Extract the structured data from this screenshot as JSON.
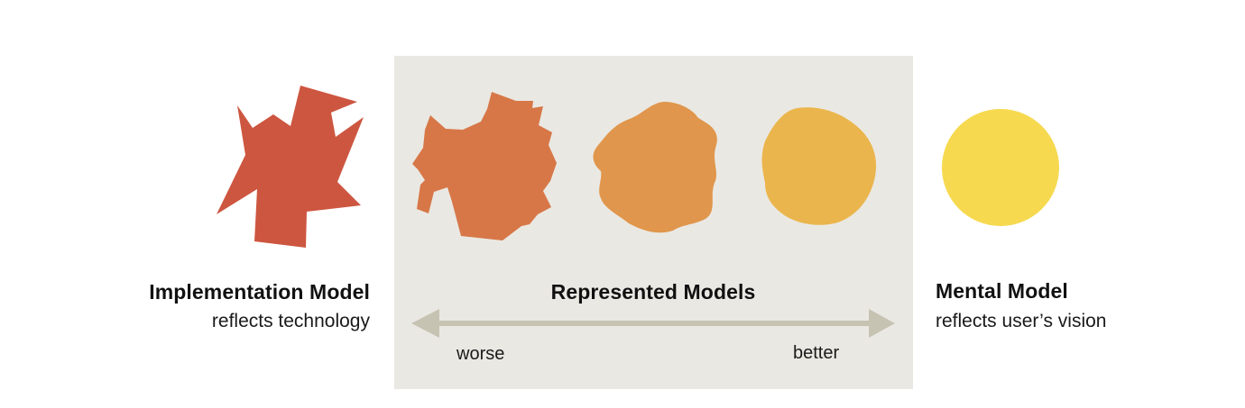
{
  "implementation": {
    "title": "Implementation Model",
    "subtitle": "reflects technology",
    "color": "#cd5640"
  },
  "represented": {
    "title": "Represented Models",
    "worse_label": "worse",
    "better_label": "better",
    "panel_color": "#eae8e2",
    "arrow_color": "#c7c3b3",
    "shape_colors": [
      "#d77748",
      "#e0964c",
      "#ebb54d"
    ]
  },
  "mental": {
    "title": "Mental Model",
    "subtitle": "reflects user’s vision",
    "color": "#f6d94f"
  }
}
